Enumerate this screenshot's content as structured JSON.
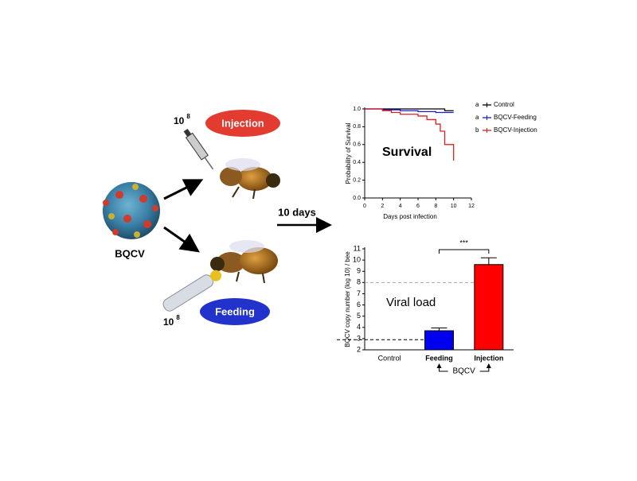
{
  "diagram": {
    "virus_label": "BQCV",
    "injection_label": "Injection",
    "feeding_label": "Feeding",
    "dose_injection": {
      "base": "10",
      "exponent": "8"
    },
    "dose_feeding": {
      "base": "10",
      "exponent": "8"
    },
    "time_label": "10 days"
  },
  "chart_data": [
    {
      "type": "line",
      "step": true,
      "annotation": "Survival",
      "xlabel": "Days post infection",
      "ylabel": "Probability of Survival",
      "xlim": [
        0,
        12
      ],
      "xticks": [
        0,
        2,
        4,
        6,
        8,
        10,
        12
      ],
      "ylim": [
        0,
        1
      ],
      "yticks": [
        {
          "value": 0,
          "label": "0.0"
        },
        0.2,
        0.4,
        0.6,
        0.8,
        {
          "value": 1,
          "label": "1.0"
        }
      ],
      "legend": "right",
      "series": [
        {
          "name": "Control",
          "group": "a",
          "color": "#000000",
          "x": [
            0,
            9,
            10
          ],
          "values": [
            1,
            0.98,
            0.98
          ]
        },
        {
          "name": "BQCV-Feeding",
          "group": "a",
          "color": "#1a1ad0",
          "x": [
            0,
            2,
            4,
            6,
            8,
            10
          ],
          "values": [
            1,
            0.99,
            0.98,
            0.97,
            0.96,
            0.96
          ]
        },
        {
          "name": "BQCV-Injection",
          "group": "b",
          "color": "#e02020",
          "x": [
            0,
            2,
            3,
            4,
            6,
            7,
            8,
            8.5,
            9,
            10
          ],
          "values": [
            1,
            0.98,
            0.96,
            0.94,
            0.92,
            0.88,
            0.83,
            0.75,
            0.6,
            0.42
          ]
        }
      ]
    },
    {
      "type": "bar",
      "annotation": "Viral load",
      "ylabel": "BQCV copy number (log 10) / bee",
      "categories": [
        "Control",
        "Feeding",
        "Injection"
      ],
      "values": [
        null,
        3.7,
        9.6
      ],
      "errors": [
        null,
        0.25,
        0.6
      ],
      "colors": [
        "#0000ee",
        "#0000ee",
        "#ff0000"
      ],
      "ylim": [
        2,
        11
      ],
      "yticks": [
        2,
        3,
        4,
        5,
        6,
        7,
        8,
        9,
        10,
        11
      ],
      "reference_lines": [
        {
          "value": 8,
          "color": "#aaaaaa"
        },
        {
          "value": 2.9,
          "color": "#000000"
        }
      ],
      "significance": "***",
      "group_label": "BQCV"
    }
  ]
}
